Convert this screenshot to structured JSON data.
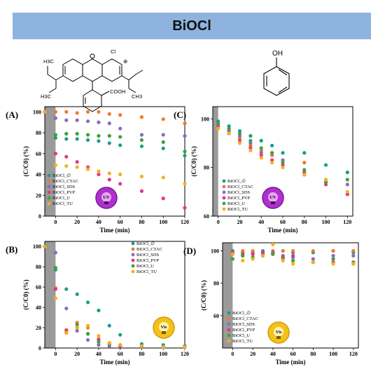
{
  "title": "BiOCl",
  "colors": {
    "banner": "#8eb3df",
    "series": [
      "#1a9e8a",
      "#f07a2a",
      "#8a6bbf",
      "#e8338a",
      "#3aa33a",
      "#f5b01a"
    ]
  },
  "structures": {
    "rhodamine": {
      "chloride": "Cl",
      "carboxyl": "COOH",
      "methyl_a": "H3C",
      "methyl_b": "H3C",
      "methyl_c": "CH3",
      "plus": "⊕"
    },
    "phenol": {
      "hydroxyl": "OH"
    }
  },
  "chart_data": [
    {
      "panel": "(A)",
      "type": "scatter",
      "xlabel": "Time (min)",
      "ylabel": "(C/C0) (%)",
      "xlim": [
        -10,
        120
      ],
      "ylim": [
        0,
        105
      ],
      "xticks": [
        0,
        20,
        40,
        60,
        80,
        100,
        120
      ],
      "yticks": [
        0,
        20,
        40,
        60,
        80,
        100
      ],
      "legend_position": "bottom-left",
      "badge": "UV",
      "badge_color": "purple",
      "x": [
        -10,
        0,
        10,
        20,
        30,
        40,
        50,
        60,
        80,
        100,
        120
      ],
      "series": [
        {
          "name": "BiOCl_∅",
          "values": [
            100,
            75,
            74,
            74,
            73,
            72,
            70,
            68,
            67,
            65,
            58
          ]
        },
        {
          "name": "BiOCl_CTAC",
          "values": [
            100,
            100,
            100,
            99,
            100,
            100,
            98,
            97,
            95,
            93,
            89
          ]
        },
        {
          "name": "BiOCl_SDS",
          "values": [
            100,
            94,
            92,
            92,
            91,
            90,
            89,
            84,
            78,
            78,
            77
          ]
        },
        {
          "name": "BiOCl_PVP",
          "values": [
            100,
            60,
            57,
            52,
            47,
            40,
            35,
            31,
            24,
            17,
            8
          ]
        },
        {
          "name": "BiOCl_U",
          "values": [
            100,
            78,
            79,
            79,
            78,
            77,
            77,
            76,
            73,
            71,
            62
          ]
        },
        {
          "name": "BiOCl_TU",
          "values": [
            100,
            49,
            48,
            47,
            45,
            43,
            41,
            40,
            38,
            37,
            31
          ]
        }
      ]
    },
    {
      "panel": "(B)",
      "type": "scatter",
      "xlabel": "Time (min)",
      "ylabel": "(C/C0) (%)",
      "xlim": [
        -10,
        120
      ],
      "ylim": [
        0,
        105
      ],
      "xticks": [
        0,
        20,
        40,
        60,
        80,
        100,
        120
      ],
      "yticks": [
        0,
        20,
        40,
        60,
        80,
        100
      ],
      "legend_position": "top-right",
      "badge": "Vis",
      "badge_color": "yellow",
      "x": [
        -10,
        0,
        10,
        20,
        30,
        40,
        50,
        60,
        80,
        100,
        120
      ],
      "series": [
        {
          "name": "BiOCl_∅",
          "values": [
            100,
            77,
            58,
            53,
            45,
            37,
            22,
            13,
            4,
            3,
            2
          ]
        },
        {
          "name": "BiOCl_CTAC",
          "values": [
            100,
            59,
            18,
            25,
            20,
            9,
            5,
            3,
            2,
            1,
            1
          ]
        },
        {
          "name": "BiOCl_SDS",
          "values": [
            100,
            94,
            39,
            17,
            8,
            3,
            2,
            2,
            1,
            1,
            1
          ]
        },
        {
          "name": "BiOCl_PVP",
          "values": [
            100,
            58,
            17,
            20,
            14,
            8,
            4,
            2,
            2,
            1,
            1
          ]
        },
        {
          "name": "BiOCl_U",
          "values": [
            100,
            79,
            15,
            23,
            14,
            6,
            4,
            3,
            2,
            1,
            1
          ]
        },
        {
          "name": "BiOCl_TU",
          "values": [
            100,
            49,
            15,
            20,
            22,
            12,
            5,
            3,
            2,
            1,
            1
          ]
        }
      ]
    },
    {
      "panel": "(C)",
      "type": "scatter",
      "xlabel": "Time (min)",
      "ylabel": "(C/C0) (%)",
      "xlim": [
        -5,
        125
      ],
      "ylim": [
        60,
        105
      ],
      "xticks": [
        0,
        20,
        40,
        60,
        80,
        100,
        120
      ],
      "yticks": [
        60,
        80,
        100
      ],
      "legend_position": "bottom-left",
      "badge": "UV",
      "badge_color": "purple",
      "x": [
        0,
        10,
        20,
        30,
        40,
        50,
        60,
        80,
        100,
        120
      ],
      "series": [
        {
          "name": "BiOCl_∅",
          "values": [
            99,
            97,
            95,
            93,
            91,
            89,
            86,
            86,
            81,
            78
          ]
        },
        {
          "name": "BiOCl_CTAC",
          "values": [
            96,
            95,
            92,
            89,
            87,
            85,
            83,
            82,
            74,
            69
          ]
        },
        {
          "name": "BiOCl_SDS",
          "values": [
            98,
            95,
            93,
            90,
            86,
            86,
            83,
            77,
            74,
            73
          ]
        },
        {
          "name": "BiOCl_PVP",
          "values": [
            97,
            94,
            91,
            88,
            85,
            83,
            81,
            78,
            73,
            69
          ]
        },
        {
          "name": "BiOCl_U",
          "values": [
            98,
            96,
            94,
            91,
            88,
            86,
            82,
            79,
            74,
            75
          ]
        },
        {
          "name": "BiOCl_TU",
          "values": [
            96,
            94,
            90,
            87,
            84,
            82,
            80,
            77,
            75,
            70
          ]
        }
      ]
    },
    {
      "panel": "(D)",
      "type": "scatter",
      "xlabel": "Time (min)",
      "ylabel": "(C/C0) (%)",
      "xlim": [
        -10,
        125
      ],
      "ylim": [
        40,
        105
      ],
      "xticks": [
        0,
        20,
        40,
        60,
        80,
        100,
        120
      ],
      "yticks": [
        60,
        80,
        100
      ],
      "legend_position": "bottom-left",
      "badge": "Vis",
      "badge_color": "yellow",
      "x": [
        0,
        10,
        20,
        30,
        40,
        50,
        60,
        80,
        100,
        120
      ],
      "series": [
        {
          "name": "BiOCl_∅",
          "values": [
            100,
            99,
            99,
            100,
            99,
            100,
            99,
            99,
            100,
            99
          ]
        },
        {
          "name": "BiOCl_CTAC",
          "values": [
            99,
            100,
            100,
            99,
            100,
            100,
            100,
            100,
            100,
            100
          ]
        },
        {
          "name": "BiOCl_SDS",
          "values": [
            98,
            97,
            98,
            98,
            98,
            97,
            96,
            95,
            97,
            97
          ]
        },
        {
          "name": "BiOCl_PVP",
          "values": [
            99,
            98,
            98,
            99,
            99,
            96,
            97,
            93,
            93,
            92
          ]
        },
        {
          "name": "BiOCl_U",
          "values": [
            95,
            97,
            96,
            97,
            98,
            95,
            94,
            93,
            95,
            93
          ]
        },
        {
          "name": "BiOCl_TU",
          "values": [
            98,
            94,
            95,
            97,
            104,
            94,
            92,
            93,
            92,
            92
          ]
        }
      ]
    }
  ]
}
